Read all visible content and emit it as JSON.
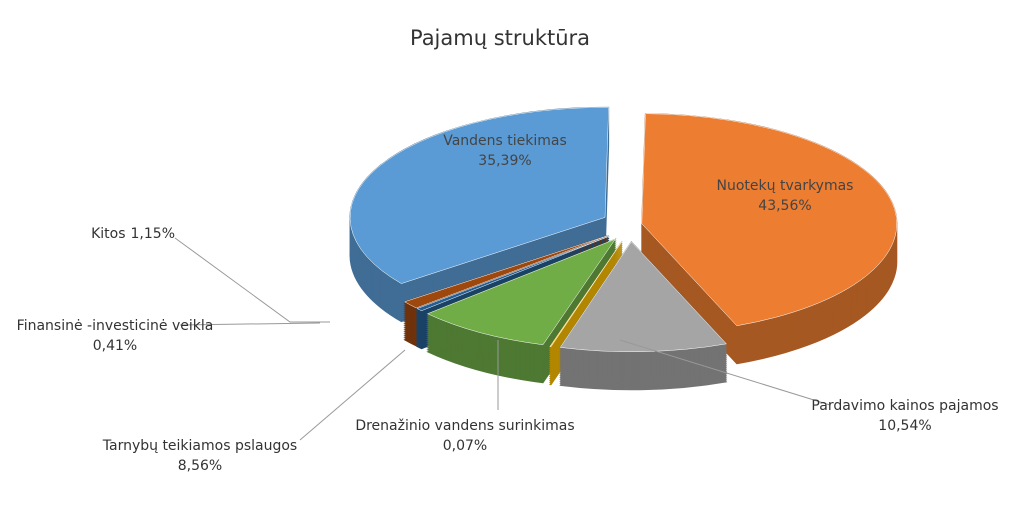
{
  "chart_data": {
    "type": "pie",
    "title": "Pajamų struktūra",
    "categories": [
      "Vandens tiekimas",
      "Nuotekų tvarkymas",
      "Pardavimo kainos pajamos",
      "Drenažinio vandens surinkimas",
      "Tarnybų teikiamos pslaugos",
      "Finansinė -investicinė veikla",
      "Kitos"
    ],
    "values": [
      35.39,
      43.56,
      10.54,
      0.07,
      8.56,
      0.41,
      1.15
    ],
    "value_labels": [
      "35,39%",
      "43,56%",
      "10,54%",
      "0,07%",
      "8,56%",
      "0,41%",
      "1,15%"
    ],
    "colors": [
      "#5b9bd5",
      "#ed7d31",
      "#a5a5a5",
      "#ffc000",
      "#70ad47",
      "#255e91",
      "#9e480e"
    ]
  }
}
